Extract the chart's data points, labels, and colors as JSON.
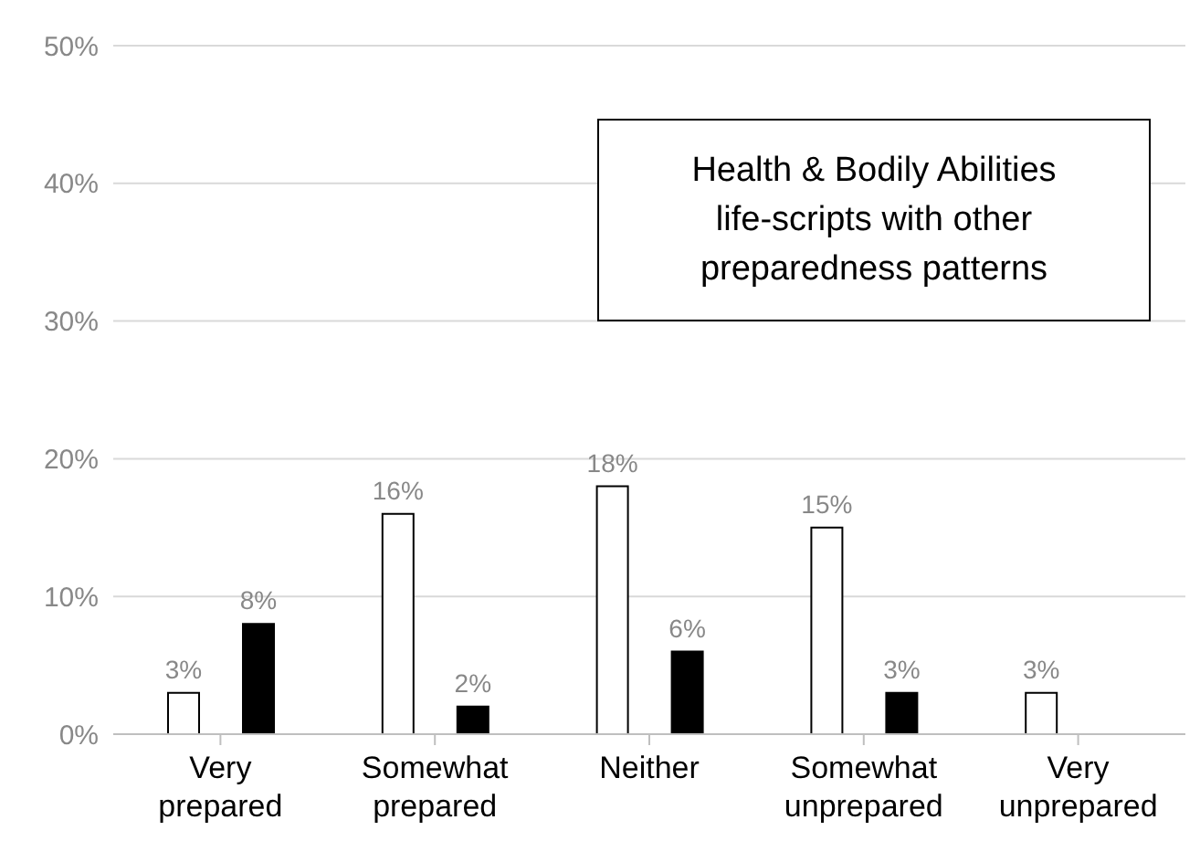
{
  "chart_data": {
    "type": "bar",
    "title": "Health & Bodily Abilities life-scripts with other preparedness patterns",
    "categories": [
      "Very prepared",
      "Somewhat prepared",
      "Neither",
      "Somewhat unprepared",
      "Very unprepared"
    ],
    "series": [
      {
        "color": "#ffffff",
        "values": [
          3,
          16,
          18,
          15,
          3
        ],
        "value_labels": [
          "3%",
          "16%",
          "18%",
          "15%",
          "3%"
        ]
      },
      {
        "color": "#000000",
        "values": [
          8,
          2,
          6,
          3,
          null
        ],
        "value_labels": [
          "8%",
          "2%",
          "6%",
          "3%",
          null
        ]
      }
    ],
    "ylim": [
      0,
      50
    ],
    "yticks": [
      {
        "value": 0,
        "label": "0%"
      },
      {
        "value": 10,
        "label": "10%"
      },
      {
        "value": 20,
        "label": "20%"
      },
      {
        "value": 30,
        "label": "30%"
      },
      {
        "value": 40,
        "label": "40%"
      },
      {
        "value": 50,
        "label": "50%"
      }
    ],
    "grid": "y",
    "legend": false
  }
}
